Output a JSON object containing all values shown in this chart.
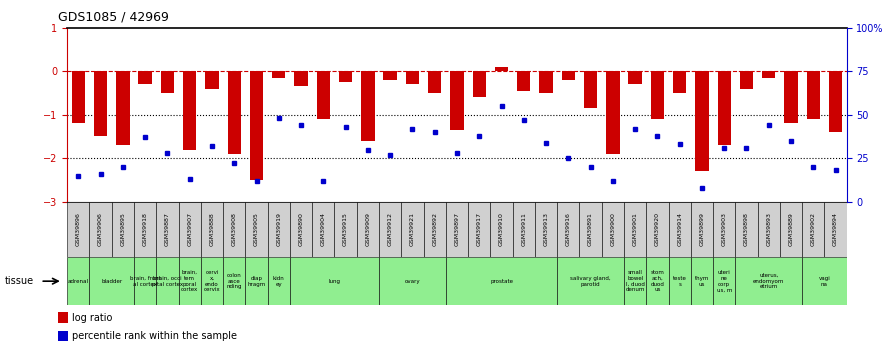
{
  "title": "GDS1085 / 42969",
  "samples": [
    "GSM39896",
    "GSM39906",
    "GSM39895",
    "GSM39918",
    "GSM39887",
    "GSM39907",
    "GSM39888",
    "GSM39908",
    "GSM39905",
    "GSM39919",
    "GSM39890",
    "GSM39904",
    "GSM39915",
    "GSM39909",
    "GSM39912",
    "GSM39921",
    "GSM39892",
    "GSM39897",
    "GSM39917",
    "GSM39910",
    "GSM39911",
    "GSM39913",
    "GSM39916",
    "GSM39891",
    "GSM39900",
    "GSM39901",
    "GSM39920",
    "GSM39914",
    "GSM39899",
    "GSM39903",
    "GSM39898",
    "GSM39893",
    "GSM39889",
    "GSM39902",
    "GSM39894"
  ],
  "log_ratio": [
    -1.2,
    -1.5,
    -1.7,
    -0.3,
    -0.5,
    -1.8,
    -0.4,
    -1.9,
    -2.5,
    -0.15,
    -0.35,
    -1.1,
    -0.25,
    -1.6,
    -0.2,
    -0.3,
    -0.5,
    -1.35,
    -0.6,
    0.1,
    -0.45,
    -0.5,
    -0.2,
    -0.85,
    -1.9,
    -0.3,
    -1.1,
    -0.5,
    -2.3,
    -1.7,
    -0.4,
    -0.15,
    -1.2,
    -1.1,
    -1.4
  ],
  "percentile_rank": [
    15,
    16,
    20,
    37,
    28,
    13,
    32,
    22,
    12,
    48,
    44,
    12,
    43,
    30,
    27,
    42,
    40,
    28,
    38,
    55,
    47,
    34,
    25,
    20,
    12,
    42,
    38,
    33,
    8,
    31,
    31,
    44,
    35,
    20,
    18
  ],
  "tissue_groups": [
    {
      "label": "adrenal",
      "start": 0,
      "end": 1
    },
    {
      "label": "bladder",
      "start": 1,
      "end": 3
    },
    {
      "label": "brain, front\nal cortex",
      "start": 3,
      "end": 4
    },
    {
      "label": "brain, occi\npital cortex",
      "start": 4,
      "end": 5
    },
    {
      "label": "brain,\ntem\nporal\ncortex",
      "start": 5,
      "end": 6
    },
    {
      "label": "cervi\nx,\nendo\ncervix",
      "start": 6,
      "end": 7
    },
    {
      "label": "colon\nasce\nnding",
      "start": 7,
      "end": 8
    },
    {
      "label": "diap\nhragm",
      "start": 8,
      "end": 9
    },
    {
      "label": "kidn\ney",
      "start": 9,
      "end": 10
    },
    {
      "label": "lung",
      "start": 10,
      "end": 14
    },
    {
      "label": "ovary",
      "start": 14,
      "end": 17
    },
    {
      "label": "prostate",
      "start": 17,
      "end": 22
    },
    {
      "label": "salivary gland,\nparotid",
      "start": 22,
      "end": 25
    },
    {
      "label": "small\nbowel\nl, duod\ndenum",
      "start": 25,
      "end": 26
    },
    {
      "label": "stom\nach,\nduod\nus",
      "start": 26,
      "end": 27
    },
    {
      "label": "teste\ns",
      "start": 27,
      "end": 28
    },
    {
      "label": "thym\nus",
      "start": 28,
      "end": 29
    },
    {
      "label": "uteri\nne\ncorp\nus, m",
      "start": 29,
      "end": 30
    },
    {
      "label": "uterus,\nendomyom\netrium",
      "start": 30,
      "end": 33
    },
    {
      "label": "vagi\nna",
      "start": 33,
      "end": 35
    }
  ],
  "tissue_color": "#90EE90",
  "bar_color": "#CC0000",
  "dot_color": "#0000CC",
  "ylim_left": [
    -3.0,
    1.0
  ],
  "ylim_right": [
    0,
    100
  ],
  "yticks_left": [
    -3,
    -2,
    -1,
    0,
    1
  ],
  "yticks_right_vals": [
    0,
    25,
    50,
    75,
    100
  ],
  "yticks_right_labels": [
    "0",
    "25",
    "50",
    "75",
    "100%"
  ],
  "dotted_lines": [
    -1,
    -2
  ],
  "bg_color": "#ffffff",
  "xticklabel_bg": "#d0d0d0"
}
